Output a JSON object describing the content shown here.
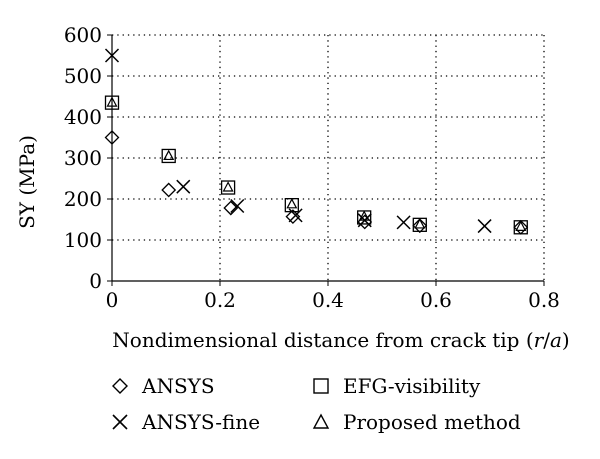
{
  "chart_data": {
    "type": "scatter",
    "xlabel": "Nondimensional distance from crack tip (r/a)",
    "xlabel_parts": {
      "main": "Nondimensional distance from crack tip (",
      "italic_r": "r",
      "slash": "/",
      "italic_a": "a",
      "close": ")"
    },
    "ylabel": "SY (MPa)",
    "xlim": [
      0,
      0.8
    ],
    "ylim": [
      0,
      600
    ],
    "xticks": [
      "0",
      "0.2",
      "0.4",
      "0.6",
      "0.8"
    ],
    "yticks": [
      "0",
      "100",
      "200",
      "300",
      "400",
      "500",
      "600"
    ],
    "grid": true,
    "legend_position": "bottom",
    "series": [
      {
        "name": "ANSYS",
        "marker": "diamond",
        "points": [
          [
            0.0,
            350
          ],
          [
            0.105,
            222
          ],
          [
            0.22,
            178
          ],
          [
            0.335,
            157
          ],
          [
            0.468,
            144
          ],
          [
            0.57,
            135
          ],
          [
            0.757,
            131
          ]
        ]
      },
      {
        "name": "ANSYS-fine",
        "marker": "x",
        "points": [
          [
            0.0,
            550
          ],
          [
            0.132,
            230
          ],
          [
            0.232,
            183
          ],
          [
            0.34,
            160
          ],
          [
            0.468,
            148
          ],
          [
            0.54,
            143
          ],
          [
            0.69,
            134
          ]
        ]
      },
      {
        "name": "EFG-visibility",
        "marker": "square",
        "points": [
          [
            0.0,
            435
          ],
          [
            0.105,
            305
          ],
          [
            0.215,
            228
          ],
          [
            0.333,
            185
          ],
          [
            0.467,
            155
          ],
          [
            0.57,
            137
          ],
          [
            0.757,
            131
          ]
        ]
      },
      {
        "name": "Proposed method",
        "marker": "triangle",
        "points": [
          [
            0.0,
            435
          ],
          [
            0.105,
            305
          ],
          [
            0.215,
            228
          ],
          [
            0.333,
            187
          ],
          [
            0.467,
            157
          ],
          [
            0.57,
            138
          ],
          [
            0.757,
            132
          ]
        ]
      }
    ]
  },
  "legend": {
    "items": [
      {
        "label": "ANSYS",
        "marker": "diamond"
      },
      {
        "label": "ANSYS-fine",
        "marker": "x"
      },
      {
        "label": "EFG-visibility",
        "marker": "square"
      },
      {
        "label": "Proposed method",
        "marker": "triangle"
      }
    ]
  }
}
